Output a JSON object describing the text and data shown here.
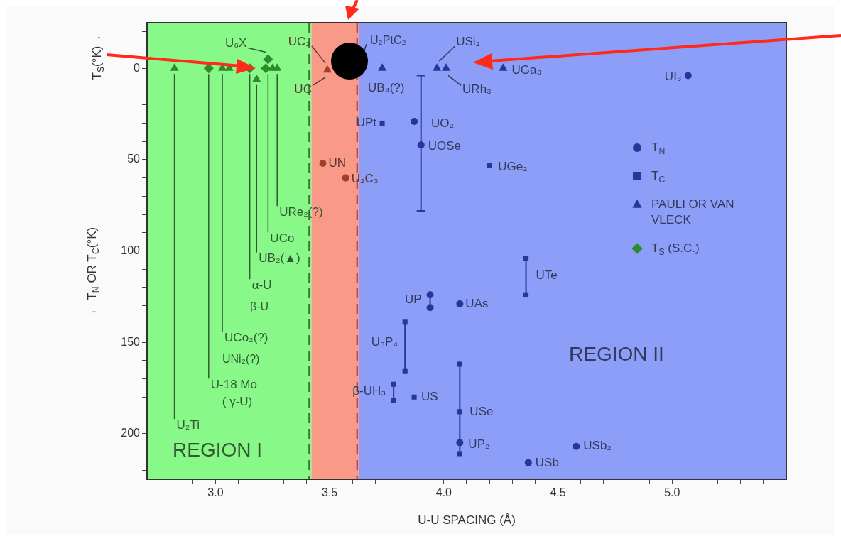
{
  "chart_data": {
    "type": "scatter",
    "xlabel": "U-U SPACING (Å)",
    "ylabel": "← T$_{N}$ OR T$_{C}$(°K)",
    "xlim": [
      2.7,
      5.5
    ],
    "ylim": [
      225,
      -25
    ],
    "xticks": [
      {
        "value": 2.8,
        "label": null
      },
      {
        "value": 2.9,
        "label": null
      },
      {
        "value": 3.0,
        "label": "3.0"
      },
      {
        "value": 3.1,
        "label": null
      },
      {
        "value": 3.2,
        "label": null
      },
      {
        "value": 3.3,
        "label": null
      },
      {
        "value": 3.4,
        "label": null
      },
      {
        "value": 3.5,
        "label": "3.5"
      },
      {
        "value": 3.6,
        "label": null
      },
      {
        "value": 3.7,
        "label": null
      },
      {
        "value": 3.8,
        "label": null
      },
      {
        "value": 3.9,
        "label": null
      },
      {
        "value": 4.0,
        "label": "4.0"
      },
      {
        "value": 4.1,
        "label": null
      },
      {
        "value": 4.2,
        "label": null
      },
      {
        "value": 4.3,
        "label": null
      },
      {
        "value": 4.4,
        "label": null
      },
      {
        "value": 4.5,
        "label": "4.5"
      },
      {
        "value": 4.6,
        "label": null
      },
      {
        "value": 4.7,
        "label": null
      },
      {
        "value": 4.8,
        "label": null
      },
      {
        "value": 4.9,
        "label": null
      },
      {
        "value": 5.0,
        "label": "5.0"
      },
      {
        "value": 5.1,
        "label": null
      },
      {
        "value": 5.2,
        "label": null
      },
      {
        "value": 5.3,
        "label": null
      },
      {
        "value": 5.4,
        "label": null
      }
    ],
    "yticks": [
      {
        "value": -20,
        "label": null
      },
      {
        "value": -10,
        "label": null
      },
      0,
      {
        "value": 10,
        "label": null
      },
      {
        "value": 20,
        "label": null
      },
      {
        "value": 30,
        "label": null
      },
      {
        "value": 40,
        "label": null
      },
      50,
      {
        "value": 60,
        "label": null
      },
      {
        "value": 70,
        "label": null
      },
      {
        "value": 80,
        "label": null
      },
      {
        "value": 90,
        "label": null
      },
      100,
      {
        "value": 110,
        "label": null
      },
      {
        "value": 120,
        "label": null
      },
      {
        "value": 130,
        "label": null
      },
      {
        "value": 140,
        "label": null
      },
      150,
      {
        "value": 160,
        "label": null
      },
      {
        "value": 170,
        "label": null
      },
      {
        "value": 180,
        "label": null
      },
      {
        "value": 190,
        "label": null
      },
      200,
      {
        "value": 210,
        "label": null
      },
      {
        "value": 220,
        "label": null
      }
    ],
    "legend": "right",
    "bands": [
      {
        "axis": "x",
        "from": 2.7,
        "to": 3.42,
        "label": "REGION I",
        "color": "#88f888"
      },
      {
        "axis": "x",
        "from": 3.42,
        "to": 3.63,
        "color": "#f99a88"
      },
      {
        "axis": "x",
        "from": 3.63,
        "to": 5.5,
        "label": "REGION II",
        "color": "#8c9ef8"
      }
    ],
    "ref_lines": [
      {
        "axis": "x",
        "value": 3.41,
        "color": "#2e7a2e",
        "line_style": "dashed"
      },
      {
        "axis": "x",
        "value": 3.62,
        "color": "#8a2a5a",
        "line_style": "dashed"
      }
    ],
    "series": [
      {
        "name": "T$_{N}$",
        "marker": "circle",
        "color": "#26369a",
        "x": [
          3.47,
          3.57,
          3.87,
          3.9,
          3.94,
          3.94,
          4.07,
          4.07,
          4.37,
          4.58,
          5.07
        ],
        "values": [
          52,
          60,
          29,
          42,
          124,
          131,
          129,
          205,
          216,
          207,
          4
        ],
        "errors": [
          null,
          null,
          null,
          [
            4,
            78
          ],
          null,
          null,
          null,
          null,
          null,
          null,
          null
        ],
        "colors": [
          "#a0402c",
          "#a0402c",
          "#26369a",
          "#26369a",
          "#26369a",
          "#26369a",
          "#26369a",
          "#26369a",
          "#26369a",
          "#26369a",
          "#26369a"
        ]
      },
      {
        "name": "T$_{C}$",
        "marker": "square",
        "color": "#26369a",
        "x": [
          3.73,
          4.2,
          4.36,
          4.36,
          3.83,
          3.83,
          3.78,
          3.78,
          3.87,
          4.07,
          4.07,
          4.07
        ],
        "values": [
          30,
          53,
          104,
          124,
          139,
          166,
          173,
          182,
          180,
          162,
          188,
          211
        ],
        "colors": [
          "#26369a",
          "#26369a",
          "#26369a",
          "#26369a",
          "#26369a",
          "#26369a",
          "#26369a",
          "#26369a",
          "#26369a",
          "#26369a",
          "#26369a",
          "#26369a"
        ]
      },
      {
        "name": "PAULI OR VAN VLECK",
        "marker": "triangle",
        "color": "#26369a",
        "x": [
          2.82,
          3.03,
          3.06,
          3.18,
          3.25,
          3.27,
          3.49,
          3.73,
          3.97,
          4.01,
          4.26
        ],
        "values": [
          0,
          0,
          0,
          6,
          0,
          0,
          1,
          0,
          0,
          0,
          0
        ],
        "colors": [
          "#2e8a2e",
          "#2e8a2e",
          "#2e8a2e",
          "#2e8a2e",
          "#2e8a2e",
          "#2e8a2e",
          "#a0402c",
          "#26369a",
          "#26369a",
          "#26369a",
          "#26369a"
        ]
      },
      {
        "name": "T$_{S}$ (S.C.)",
        "marker": "diamond",
        "color": "#2e8a2e",
        "x": [
          2.97,
          3.15,
          3.23,
          3.22
        ],
        "values": [
          0,
          0,
          -5,
          0
        ],
        "colors": [
          "#2e8a2e",
          "#2e8a2e",
          "#2e8a2e",
          "#2e8a2e"
        ]
      },
      {
        "type": "line",
        "marker": "none",
        "color": "#26369a",
        "x": [
          3.94,
          3.94
        ],
        "values": [
          124,
          131
        ]
      },
      {
        "type": "line",
        "marker": "none",
        "color": "#26369a",
        "x": [
          4.36,
          4.36
        ],
        "values": [
          104,
          124
        ]
      },
      {
        "type": "line",
        "marker": "none",
        "color": "#26369a",
        "x": [
          3.83,
          3.83
        ],
        "values": [
          139,
          166
        ]
      },
      {
        "type": "line",
        "marker": "none",
        "color": "#26369a",
        "x": [
          3.78,
          3.78
        ],
        "values": [
          173,
          182
        ]
      },
      {
        "type": "line",
        "marker": "none",
        "color": "#26369a",
        "x": [
          4.07,
          4.07
        ],
        "values": [
          162,
          211
        ]
      }
    ],
    "annotations": [
      {
        "text": "U₂Ti",
        "x": 2.82,
        "y": 0
      },
      {
        "text": "U-18 Mo\n( γ-U)",
        "x": 2.97,
        "y": 0
      },
      {
        "text": "UCo₂(?)",
        "x": 3.03,
        "y": 0
      },
      "UNi₂(?)",
      {
        "text": "α-U",
        "x": 3.15,
        "y": 0
      },
      "β-U",
      {
        "text": "UB₂(▲)",
        "x": 3.18,
        "y": 6
      },
      {
        "text": "UCo",
        "x": 3.23,
        "y": 0
      },
      {
        "text": "URe₂(?)",
        "x": 3.27,
        "y": 0
      },
      "U₂PtC₂",
      "T$_{S}$(°K)→",
      {
        "text": "U₆X",
        "x": 3.23,
        "y": -5
      },
      {
        "text": "UC₂",
        "x": 3.49,
        "y": 1
      },
      {
        "text": "UC",
        "x": 3.49,
        "y": 1
      },
      {
        "text": "UB₄(?)",
        "x": 3.73,
        "y": 0
      },
      {
        "text": "USi₂",
        "x": 3.97,
        "y": 0
      },
      {
        "text": "URh₃",
        "x": 4.01,
        "y": 0
      },
      {
        "text": "UGa₃",
        "x": 4.26,
        "y": 0
      },
      {
        "text": "UI₃",
        "x": 5.07,
        "y": 4
      },
      {
        "text": "UPt",
        "x": 3.73,
        "y": 30
      },
      {
        "text": "UO₂",
        "x": 3.87,
        "y": 29
      },
      {
        "text": "UOSe",
        "x": 3.9,
        "y": 42
      },
      {
        "text": "UGe₂",
        "x": 4.2,
        "y": 53
      },
      {
        "text": "UN",
        "x": 3.47,
        "y": 52
      },
      {
        "text": "U₂C₃",
        "x": 3.57,
        "y": 60
      },
      {
        "text": "UTe",
        "x": 4.36,
        "y": 104
      },
      {
        "text": "UP",
        "x": 3.94,
        "y": 124
      },
      {
        "text": "UAs",
        "x": 4.07,
        "y": 129
      },
      {
        "text": "U₃P₄",
        "x": 3.83,
        "y": 139
      },
      {
        "text": "β-UH₃",
        "x": 3.78,
        "y": 173
      },
      {
        "text": "US",
        "x": 3.87,
        "y": 180
      },
      {
        "text": "USe",
        "x": 4.07,
        "y": 188
      },
      {
        "text": "UP₂",
        "x": 4.07,
        "y": 205
      },
      {
        "text": "USb",
        "x": 4.37,
        "y": 216
      },
      {
        "text": "USb₂",
        "x": 4.58,
        "y": 207
      }
    ]
  }
}
